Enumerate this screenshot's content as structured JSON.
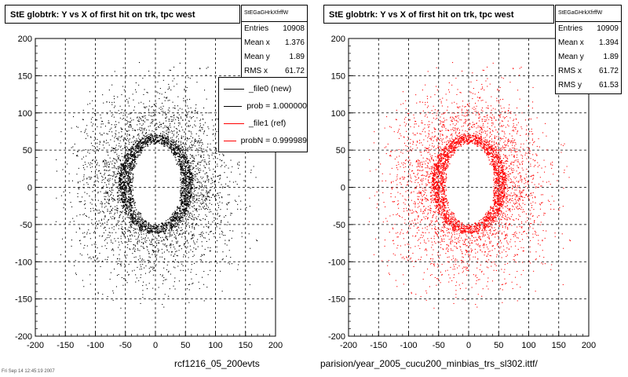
{
  "footer": {
    "left_caption": "rcf1216_05_200evts",
    "right_caption": "parision/year_2005_cucu200_minbias_trs_sl302.ittf/",
    "small_text": "Fri Sep 14 12:45:19 2007"
  },
  "panels": [
    {
      "title": "StE globtrk: Y vs X of first hit on trk, tpc west",
      "stats": {
        "name": "StEGaGHrkXfrffW",
        "rows": [
          {
            "label": "Entries",
            "value": "10908"
          },
          {
            "label": "Mean x",
            "value": "1.376"
          },
          {
            "label": "Mean y",
            "value": "1.89"
          },
          {
            "label": "RMS x",
            "value": "61.72"
          }
        ]
      },
      "legend": {
        "entries": [
          {
            "label": "_file0 (new)",
            "color": "#000000"
          },
          {
            "label": "prob = 1.000000",
            "color": "#000000"
          },
          {
            "label": "_file1 (ref)",
            "color": "#ff0000"
          },
          {
            "label": "probN = 0.999989",
            "color": "#ff0000"
          }
        ]
      }
    },
    {
      "title": "StE globtrk: Y vs X of first hit on trk, tpc west",
      "stats": {
        "name": "StEGaGHrkXfrffW",
        "rows": [
          {
            "label": "Entries",
            "value": "10909"
          },
          {
            "label": "Mean x",
            "value": "1.394"
          },
          {
            "label": "Mean y",
            "value": "1.89"
          },
          {
            "label": "RMS x",
            "value": "61.72"
          },
          {
            "label": "RMS y",
            "value": "61.53"
          }
        ]
      }
    }
  ],
  "chart_data": [
    {
      "type": "scatter",
      "title": "StE globtrk: Y vs X of first hit on trk, tpc west",
      "xlim": [
        -200,
        200
      ],
      "ylim": [
        -200,
        200
      ],
      "xticks": [
        -200,
        -150,
        -100,
        -50,
        0,
        50,
        100,
        150,
        200
      ],
      "yticks": [
        -200,
        -150,
        -100,
        -50,
        0,
        50,
        100,
        150,
        200
      ],
      "grid": true,
      "marker_color": "#000000",
      "entries": 10908,
      "mean_x": 1.376,
      "mean_y": 1.89,
      "rms_x": 61.72,
      "legend_position": "top-right",
      "distribution": {
        "dense_ring_outer": {
          "x": [
            -60,
            60
          ],
          "y": [
            -60,
            70
          ]
        },
        "dense_ring_inner": {
          "x": [
            -40,
            42
          ],
          "y": [
            -50,
            60
          ]
        },
        "diffuse_extent": {
          "x": [
            -170,
            170
          ],
          "y": [
            -170,
            170
          ]
        }
      }
    },
    {
      "type": "scatter",
      "title": "StE globtrk: Y vs X of first hit on trk, tpc west",
      "xlim": [
        -200,
        200
      ],
      "ylim": [
        -200,
        200
      ],
      "xticks": [
        -200,
        -150,
        -100,
        -50,
        0,
        50,
        100,
        150,
        200
      ],
      "yticks": [
        -200,
        -150,
        -100,
        -50,
        0,
        50,
        100,
        150,
        200
      ],
      "grid": true,
      "marker_color": "#ff0000",
      "entries": 10909,
      "mean_x": 1.394,
      "mean_y": 1.89,
      "rms_x": 61.72,
      "rms_y": 61.53,
      "distribution": {
        "dense_ring_outer": {
          "x": [
            -60,
            60
          ],
          "y": [
            -60,
            70
          ]
        },
        "dense_ring_inner": {
          "x": [
            -40,
            42
          ],
          "y": [
            -50,
            60
          ]
        },
        "diffuse_extent": {
          "x": [
            -170,
            170
          ],
          "y": [
            -170,
            170
          ]
        }
      }
    }
  ]
}
